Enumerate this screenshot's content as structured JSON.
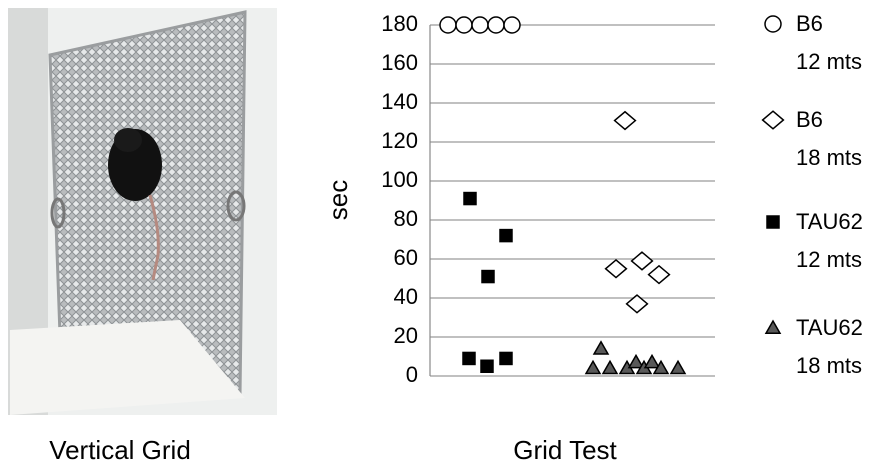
{
  "photo": {
    "caption": "Vertical Grid"
  },
  "chart_data": {
    "type": "scatter",
    "xlabel": "Grid Test",
    "ylabel": "sec",
    "ylim": [
      0,
      180
    ],
    "yticks": [
      0,
      20,
      40,
      60,
      80,
      100,
      120,
      140,
      160,
      180
    ],
    "grid": true,
    "legend": "right",
    "series": [
      {
        "name": "B6\n12 mts",
        "marker": "circle",
        "color": "#ffffff",
        "values": [
          180,
          180,
          180,
          180,
          180
        ]
      },
      {
        "name": "B6\n18 mts",
        "marker": "diamond",
        "color": "#ffffff",
        "values": [
          131,
          55,
          59,
          52,
          37
        ]
      },
      {
        "name": "TAU62\n12 mts",
        "marker": "square",
        "color": "#000000",
        "values": [
          91,
          72,
          51,
          9,
          5,
          9
        ]
      },
      {
        "name": "TAU62\n18 mts",
        "marker": "triangle",
        "color": "#595959",
        "values": [
          14,
          4,
          4,
          4,
          7,
          4,
          7,
          4,
          4
        ]
      }
    ]
  }
}
